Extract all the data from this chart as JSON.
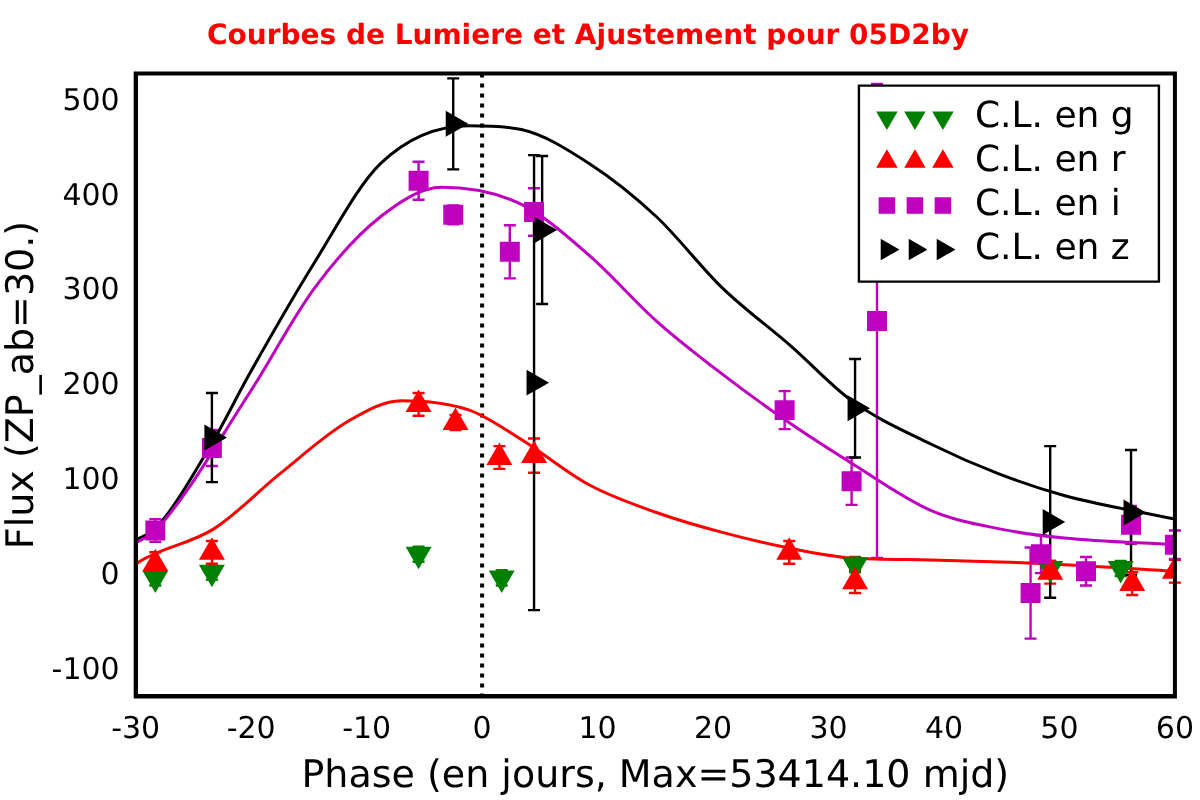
{
  "chart_data": {
    "type": "scatter",
    "title": "Courbes de Lumiere et Ajustement pour 05D2by",
    "xlabel": "Phase (en jours, Max=53414.10 mjd)",
    "ylabel": "Flux (ZP_ab=30.)",
    "xlim": [
      -30,
      60
    ],
    "xticks": [
      -30,
      -20,
      -10,
      0,
      10,
      20,
      30,
      40,
      50,
      60
    ],
    "ylim": [
      -127,
      530
    ],
    "yticks": [
      -100,
      0,
      100,
      200,
      300,
      400,
      500
    ],
    "grid": false,
    "legend": "top right",
    "ref_lines": [
      {
        "axis": "x",
        "value": 0,
        "color": "#000000",
        "line_style": "dotted"
      }
    ],
    "series": [
      {
        "type": "line",
        "color": "#000000",
        "marker": "none",
        "x": [
          -30,
          -28.3,
          -23.4,
          -20.2,
          -14.5,
          -8.8,
          -1.1,
          3.4,
          9.3,
          15.1,
          20.8,
          26.8,
          32,
          38.9,
          44.7,
          50.4,
          60
        ],
        "values": [
          38,
          50,
          140,
          212,
          331,
          435,
          475,
          471,
          435,
          379,
          304,
          242,
          185,
          139,
          108,
          85,
          60
        ]
      },
      {
        "type": "line",
        "color": "#bf00bf",
        "marker": "none",
        "x": [
          -30,
          -28.3,
          -20.2,
          -14.5,
          -8.8,
          -3.5,
          3.4,
          9.3,
          15.1,
          20.8,
          26.8,
          32,
          38.9,
          44.7,
          50.4,
          60
        ],
        "values": [
          35,
          48,
          192,
          304,
          379,
          410,
          392,
          338,
          269,
          213,
          160,
          119,
          69,
          50,
          40,
          33
        ]
      },
      {
        "type": "line",
        "color": "#ff0000",
        "marker": "none",
        "x": [
          -30,
          -29.7,
          -23.2,
          -17.5,
          -11.5,
          -7,
          -1.1,
          3.4,
          9.3,
          15.1,
          20.8,
          26.8,
          32,
          38.9,
          50.4,
          60
        ],
        "values": [
          12,
          15,
          50,
          108,
          164,
          185,
          175,
          144,
          96,
          67,
          46,
          29,
          19,
          17,
          12,
          5
        ]
      },
      {
        "type": "scatter",
        "name": "C.L. en g",
        "color": "#008000",
        "marker": "triangle_down",
        "x": [
          -28.3,
          -23.4,
          -5.5,
          1.7,
          32.3,
          49.2,
          55.3
        ],
        "values": [
          -2,
          4,
          23,
          -2,
          12,
          8,
          8
        ],
        "errors": [
          8,
          8,
          8,
          8,
          8,
          8,
          8
        ]
      },
      {
        "type": "scatter",
        "name": "C.L. en r",
        "color": "#ff0000",
        "marker": "triangle",
        "x": [
          -28.3,
          -23.4,
          -5.5,
          -2.3,
          1.5,
          4.5,
          26.6,
          32.3,
          49.2,
          56.3,
          60
        ],
        "values": [
          13,
          25,
          181,
          162,
          125,
          127,
          25,
          -6,
          4,
          -8,
          5
        ],
        "errors": [
          12,
          12,
          12,
          8,
          12,
          18,
          12,
          12,
          12,
          12,
          12
        ]
      },
      {
        "type": "scatter",
        "name": "C.L. en i",
        "color": "#bf00bf",
        "marker": "square",
        "x": [
          -28.3,
          -23.4,
          -5.5,
          -2.5,
          2.4,
          4.5,
          26.2,
          32,
          34.2,
          47.5,
          48.4,
          52.3,
          56.2,
          60
        ],
        "values": [
          48,
          135,
          417,
          381,
          342,
          384,
          175,
          100,
          269,
          -18,
          23,
          5,
          54,
          33
        ],
        "errors": [
          12,
          19,
          20,
          10,
          28,
          25,
          20,
          25,
          250,
          48,
          20,
          15,
          20,
          15
        ]
      },
      {
        "type": "scatter",
        "name": "C.L. en z",
        "color": "#000000",
        "marker": "triangle_right",
        "x": [
          -23.4,
          -2.5,
          4.5,
          5.2,
          32.3,
          49.2,
          56.2
        ],
        "values": [
          146,
          477,
          204,
          365,
          177,
          57,
          67
        ],
        "errors": [
          47,
          48,
          240,
          78,
          52,
          80,
          66
        ]
      }
    ]
  }
}
